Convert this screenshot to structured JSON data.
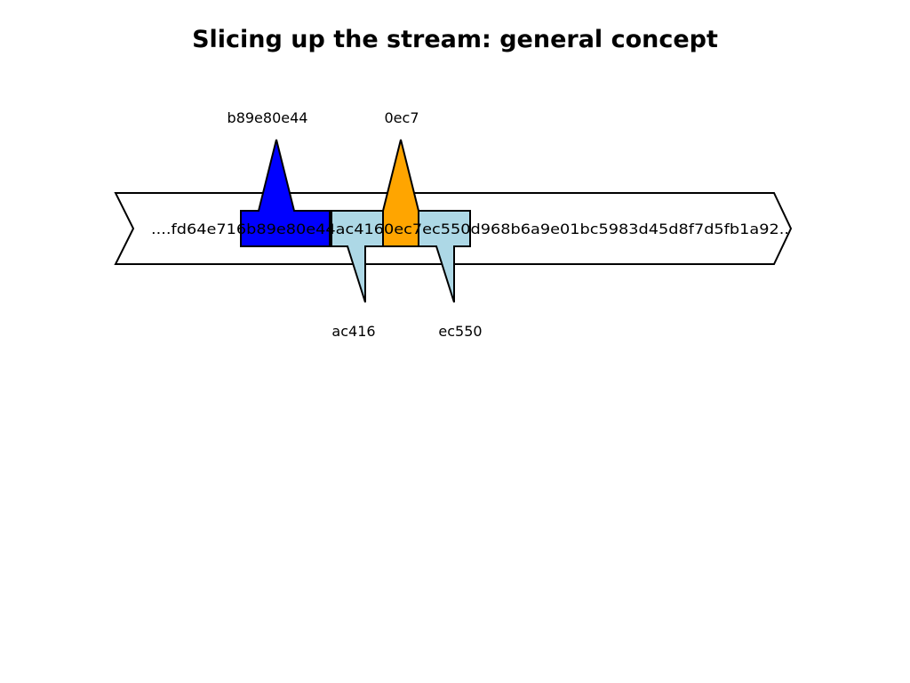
{
  "title": "Slicing up the stream: general concept",
  "stream_text": "....fd64e716b89e80e44ac4160ec7ec550d968b6a9e01bc5983d45d8f7d5fb1a92..",
  "slices": [
    {
      "label": "b89e80e44",
      "color": "#0000ff",
      "pointer": "up"
    },
    {
      "label": "ac416",
      "color": "#add8e6",
      "pointer": "down"
    },
    {
      "label": "0ec7",
      "color": "#ffa500",
      "pointer": "up"
    },
    {
      "label": "ec550",
      "color": "#add8e6",
      "pointer": "down"
    }
  ]
}
